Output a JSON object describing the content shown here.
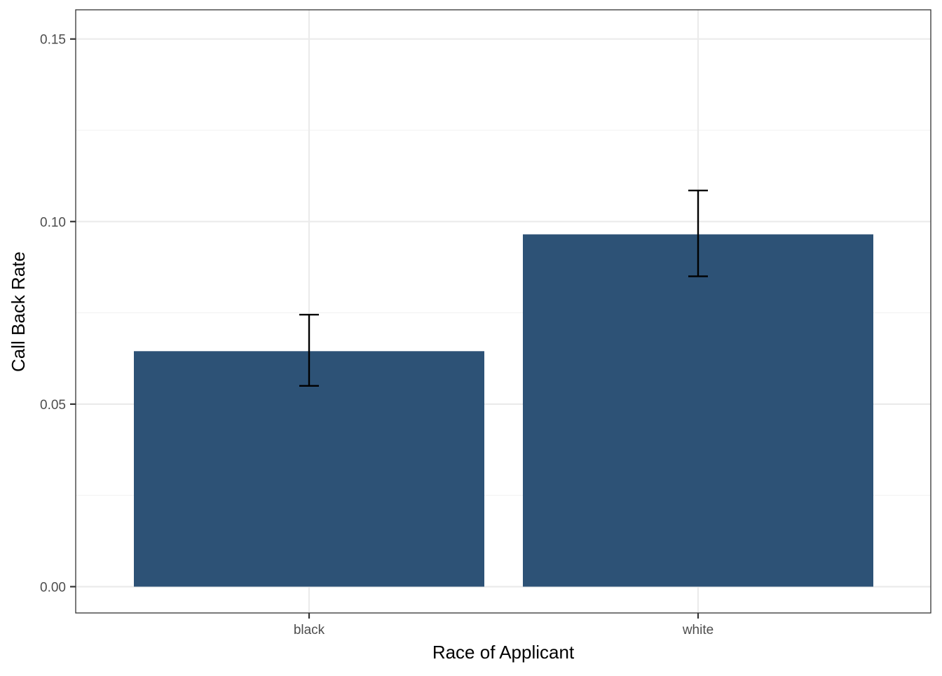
{
  "chart_data": {
    "type": "bar",
    "categories": [
      "black",
      "white"
    ],
    "values": [
      0.0645,
      0.0965
    ],
    "error_bars": {
      "lower": [
        0.055,
        0.085
      ],
      "upper": [
        0.0745,
        0.1085
      ]
    },
    "xlabel": "Race of Applicant",
    "ylabel": "Call Back Rate",
    "yticks": [
      "0.00",
      "0.05",
      "0.10",
      "0.15"
    ],
    "ylim": [
      -0.0072,
      0.158
    ],
    "grid": true,
    "legend": "none",
    "colors": {
      "bar": "#2d5276",
      "error_bar": "#000000",
      "grid_major": "#ebebeb",
      "grid_minor": "#f2f2f2",
      "panel_border": "#333333",
      "tick_text": "#4d4d4d"
    }
  }
}
